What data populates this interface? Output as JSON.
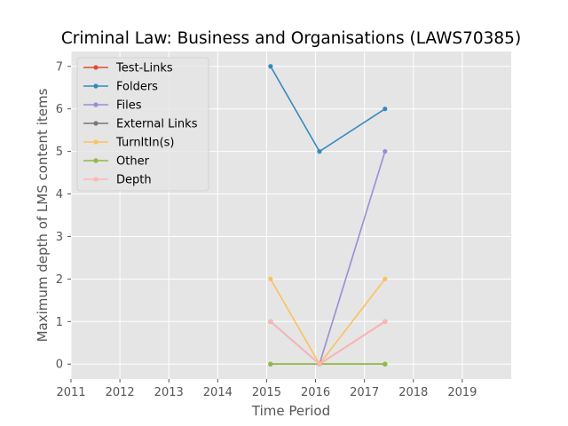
{
  "chart_data": {
    "type": "line",
    "title": "Criminal Law: Business and Organisations (LAWS70385)",
    "xlabel": "Time Period",
    "ylabel": "Maximum depth of LMS content items",
    "xlim": [
      2011,
      2020
    ],
    "ylim": [
      -0.35,
      7.35
    ],
    "xticks": [
      "2011",
      "2012",
      "2013",
      "2014",
      "2015",
      "2016",
      "2017",
      "2018",
      "2019"
    ],
    "yticks": [
      "0",
      "1",
      "2",
      "3",
      "4",
      "5",
      "6",
      "7"
    ],
    "grid": true,
    "legend_position": "upper-left",
    "background": "#e5e5e5",
    "x": [
      2015.08,
      2016.08,
      2017.42
    ],
    "series": [
      {
        "name": "Test-Links",
        "color": "#e24a33",
        "values": [
          1,
          0,
          1
        ]
      },
      {
        "name": "Folders",
        "color": "#348abd",
        "values": [
          7,
          5,
          6
        ]
      },
      {
        "name": "Files",
        "color": "#988ed5",
        "values": [
          1,
          0,
          5
        ]
      },
      {
        "name": "External Links",
        "color": "#777777",
        "values": [
          0,
          0,
          0
        ]
      },
      {
        "name": "TurnItIn(s)",
        "color": "#fbc15e",
        "values": [
          2,
          0,
          2
        ]
      },
      {
        "name": "Other",
        "color": "#8eba42",
        "values": [
          0,
          0,
          0
        ]
      },
      {
        "name": "Depth",
        "color": "#ffb5b8",
        "values": [
          1,
          0,
          1
        ]
      }
    ]
  }
}
